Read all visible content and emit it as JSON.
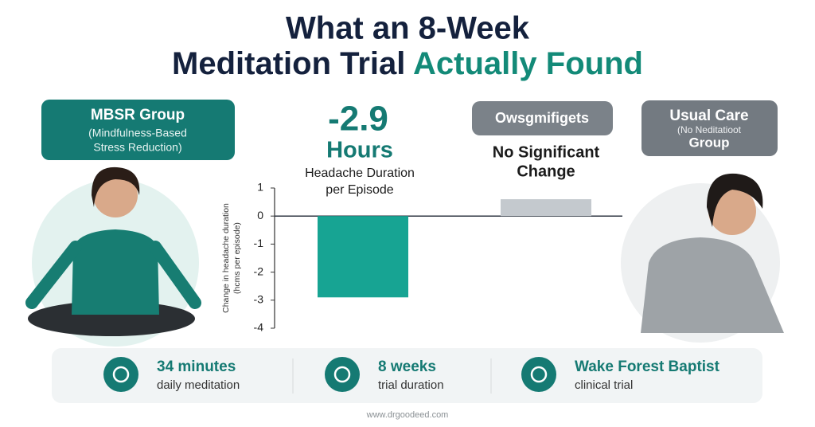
{
  "header": {
    "title_line1": "What an 8-Week",
    "title_line2": "Meditation Trial",
    "title_highlight": "Actually Found"
  },
  "groups": {
    "left_title": "MBSR Group",
    "left_subtitle_1": "(Mindfulness-Based",
    "left_subtitle_2": "Stress Reduction)",
    "right_title": "Usual Care",
    "right_subtitle_1": "(No Neditatioot",
    "right_subtitle_2": "Group"
  },
  "chart_data": {
    "type": "bar",
    "y_label_1": "Change in headache duration",
    "y_label_2": "(hcms per episode)",
    "categories": [
      null,
      null
    ],
    "values": [
      -2.9,
      0.6
    ],
    "value_labels": [
      "-2.9",
      null
    ],
    "colors": [
      "#17a493",
      "#c4c9ce"
    ],
    "ylim": [
      -4,
      1
    ],
    "yticks": [
      -4,
      -3,
      -2,
      -1,
      0,
      1
    ],
    "annotations": {
      "unit": "Hours",
      "metric_1": "Headache Duration",
      "metric_2": "per Episode",
      "pill": "Owsgmifigets",
      "no_change_1": "No Significant",
      "no_change_2": "Change"
    }
  },
  "stats": [
    {
      "title": "34 minutes",
      "subtitle": "daily meditation"
    },
    {
      "title": "8 weeks",
      "subtitle": "trial duration"
    },
    {
      "title": "Wake Forest Baptist",
      "subtitle": "clinical trial"
    }
  ],
  "footer": "www.drgoodeed.com"
}
